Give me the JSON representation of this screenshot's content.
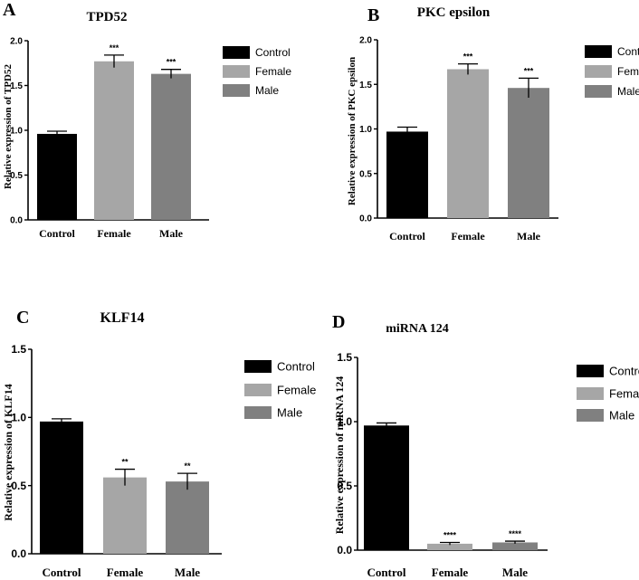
{
  "figure": {
    "panels": [
      "A",
      "B",
      "C",
      "D"
    ]
  },
  "colors": {
    "Control": "#000000",
    "Female": "#a6a6a6",
    "Male": "#808080",
    "axis": "#000000"
  },
  "chart_data": [
    {
      "type": "bar",
      "panel_label": "A",
      "title": "TPD52",
      "ylabel": "Relative expression of TPD52",
      "xlabel": "",
      "categories": [
        "Control",
        "Female",
        "Male"
      ],
      "values": [
        0.96,
        1.77,
        1.63
      ],
      "errors": [
        0.03,
        0.07,
        0.05
      ],
      "significance": [
        "",
        "***",
        "***"
      ],
      "ylim": [
        0,
        2.0
      ],
      "yticks": [
        "0.0",
        "0.5",
        "1.0",
        "1.5",
        "2.0"
      ],
      "legend": [
        "Control",
        "Female",
        "Male"
      ],
      "legend_position": "right",
      "grid": false
    },
    {
      "type": "bar",
      "panel_label": "B",
      "title": "PKC epsilon",
      "ylabel": "Relative expression of PKC epsilon",
      "xlabel": "",
      "categories": [
        "Control",
        "Female",
        "Male"
      ],
      "values": [
        0.97,
        1.67,
        1.46
      ],
      "errors": [
        0.05,
        0.06,
        0.11
      ],
      "significance": [
        "",
        "***",
        "***"
      ],
      "ylim": [
        0,
        2.0
      ],
      "yticks": [
        "0.0",
        "0.5",
        "1.0",
        "1.5",
        "2.0"
      ],
      "legend": [
        "Control",
        "Female",
        "Male"
      ],
      "legend_position": "right",
      "grid": false
    },
    {
      "type": "bar",
      "panel_label": "C",
      "title": "KLF14",
      "ylabel": "Relative expression of KLF14",
      "xlabel": "",
      "categories": [
        "Control",
        "Female",
        "Male"
      ],
      "values": [
        0.97,
        0.56,
        0.53
      ],
      "errors": [
        0.02,
        0.06,
        0.06
      ],
      "significance": [
        "",
        "**",
        "**"
      ],
      "ylim": [
        0,
        1.5
      ],
      "yticks": [
        "0.0",
        "0.5",
        "1.0",
        "1.5"
      ],
      "legend": [
        "Control",
        "Female",
        "Male"
      ],
      "legend_position": "right",
      "grid": false
    },
    {
      "type": "bar",
      "panel_label": "D",
      "title": "miRNA 124",
      "ylabel": "Relative expression of miRNA 124",
      "xlabel": "",
      "categories": [
        "Control",
        "Female",
        "Male"
      ],
      "values": [
        0.97,
        0.05,
        0.06
      ],
      "errors": [
        0.02,
        0.01,
        0.01
      ],
      "significance": [
        "",
        "****",
        "****"
      ],
      "ylim": [
        0,
        1.5
      ],
      "yticks": [
        "0.0",
        "0.5",
        "1.0",
        "1.5"
      ],
      "legend": [
        "Control",
        "Female",
        "Male"
      ],
      "legend_position": "right",
      "grid": false
    }
  ]
}
